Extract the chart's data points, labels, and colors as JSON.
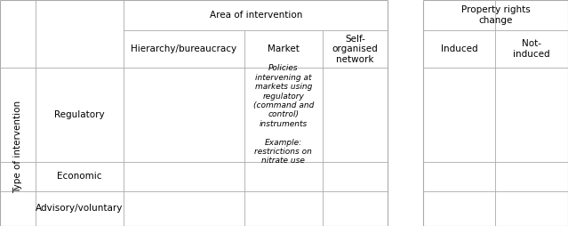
{
  "figsize": [
    6.39,
    2.54
  ],
  "dpi": 100,
  "background_color": "#ffffff",
  "line_color": "#aaaaaa",
  "text_color": "#000000",
  "font_size": 7.5,
  "font_size_small": 6.5,
  "col_bounds": [
    0.0,
    0.062,
    0.218,
    0.43,
    0.568,
    0.683,
    0.745,
    0.872,
    1.0
  ],
  "row_bounds": [
    1.0,
    0.865,
    0.7,
    0.285,
    0.155,
    0.0
  ],
  "header1": {
    "area_of_intervention": "Area of intervention",
    "property_rights": "Property rights\nchange"
  },
  "header2": {
    "hierarchy": "Hierarchy/bureaucracy",
    "market": "Market",
    "self_organised": "Self-\norganised\nnetwork",
    "induced": "Induced",
    "not_induced": "Not-\ninduced"
  },
  "row_labels": {
    "type_of_intervention": "Type of intervention",
    "regulatory": "Regulatory",
    "economic": "Economic",
    "advisory": "Advisory/voluntary"
  },
  "cell_text": {
    "market_regulatory": "Policies\nintervening at\nmarkets using\nregulatory\n(command and\ncontrol)\ninstruments\n\nExample:\nrestrictions on\nnitrate use"
  }
}
